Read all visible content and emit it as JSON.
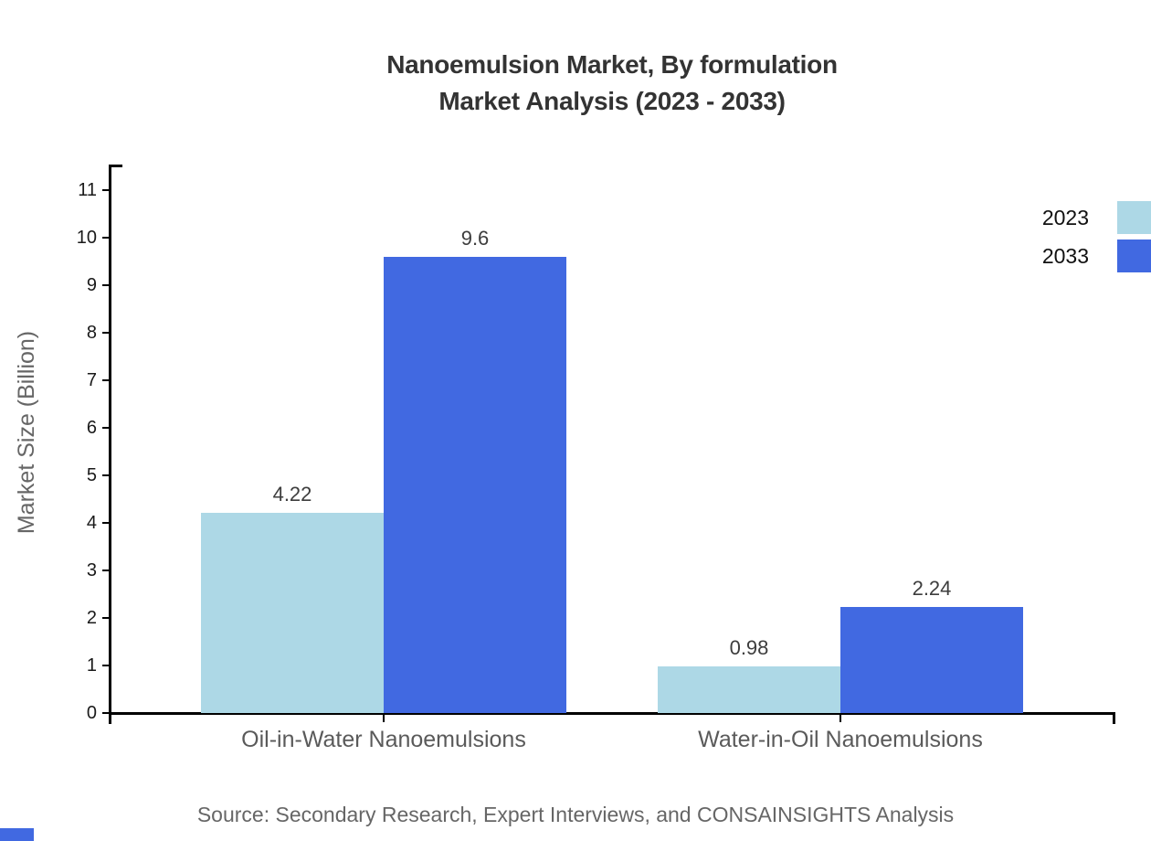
{
  "title": {
    "line1": "Nanoemulsion Market, By formulation",
    "line2": "Market Analysis (2023 - 2033)"
  },
  "ylabel": "Market Size (Billion)",
  "source": "Source: Secondary Research, Expert Interviews, and CONSAINSIGHTS Analysis",
  "legend": {
    "position": "top-right",
    "items": [
      {
        "label": "2023",
        "color": "#ADD8E6"
      },
      {
        "label": "2033",
        "color": "#4169E1"
      }
    ]
  },
  "colors": {
    "series_2023": "#ADD8E6",
    "series_2033": "#4169E1",
    "axis": "#000000",
    "title_text": "#333333",
    "axis_label_text": "#666666",
    "category_text": "#5a5a5a",
    "tick_text": "#1a1a1a",
    "value_text": "#3d3d3d",
    "corner_mark": "#4169E1"
  },
  "chart_data": {
    "type": "bar",
    "title": "Nanoemulsion Market, By formulation Market Analysis (2023 - 2033)",
    "xlabel": "",
    "ylabel": "Market Size (Billion)",
    "categories": [
      "Oil-in-Water Nanoemulsions",
      "Water-in-Oil Nanoemulsions"
    ],
    "series": [
      {
        "name": "2023",
        "color": "#ADD8E6",
        "values": [
          4.22,
          0.98
        ]
      },
      {
        "name": "2033",
        "color": "#4169E1",
        "values": [
          9.6,
          2.24
        ]
      }
    ],
    "value_labels": [
      "4.22",
      "9.6",
      "0.98",
      "2.24"
    ],
    "ylim": [
      0,
      11
    ],
    "yticks": [
      0,
      1,
      2,
      3,
      4,
      5,
      6,
      7,
      8,
      9,
      10,
      11
    ],
    "grid": false,
    "legend_position": "top-right"
  }
}
